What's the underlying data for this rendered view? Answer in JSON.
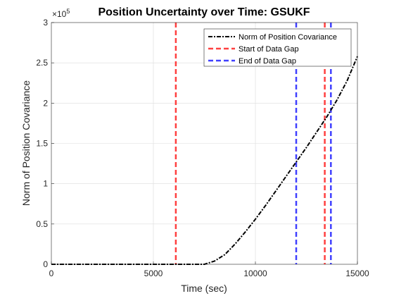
{
  "chart_data": {
    "type": "line",
    "title": "Position Uncertainty over Time: GSUKF",
    "xlabel": "Time (sec)",
    "ylabel": "Norm of Position Covariance",
    "xlim": [
      0,
      15000
    ],
    "ylim": [
      0,
      300000
    ],
    "exponent_label": "×10",
    "exponent_value": "5",
    "x_ticks": [
      0,
      5000,
      10000,
      15000
    ],
    "x_tick_labels": [
      "0",
      "5000",
      "10000",
      "15000"
    ],
    "y_ticks": [
      0,
      50000,
      100000,
      150000,
      200000,
      250000,
      300000
    ],
    "y_tick_labels": [
      "0",
      "0.5",
      "1",
      "1.5",
      "2",
      "2.5",
      "3"
    ],
    "grid": true,
    "legend_position": "top-right",
    "series": [
      {
        "name": "Norm of Position Covariance",
        "color": "#000000",
        "style": "dash-dot",
        "x": [
          0,
          1000,
          2000,
          3000,
          4000,
          5000,
          6000,
          7000,
          7500,
          8000,
          8500,
          9000,
          9500,
          10000,
          10500,
          11000,
          11500,
          12000,
          12500,
          13000,
          13500,
          14000,
          14500,
          15000
        ],
        "y": [
          0,
          0,
          0,
          0,
          0,
          0,
          0,
          0,
          0,
          4000,
          12000,
          25000,
          40000,
          56000,
          73000,
          91000,
          109000,
          127000,
          145000,
          164000,
          183000,
          204000,
          228000,
          258000
        ]
      }
    ],
    "vlines": [
      {
        "name": "Start of Data Gap",
        "color": "#ff4040",
        "style": "dashed",
        "x": [
          6100,
          13400
        ]
      },
      {
        "name": "End of Data Gap",
        "color": "#4040ff",
        "style": "dashed",
        "x": [
          12000,
          13700
        ]
      }
    ]
  }
}
